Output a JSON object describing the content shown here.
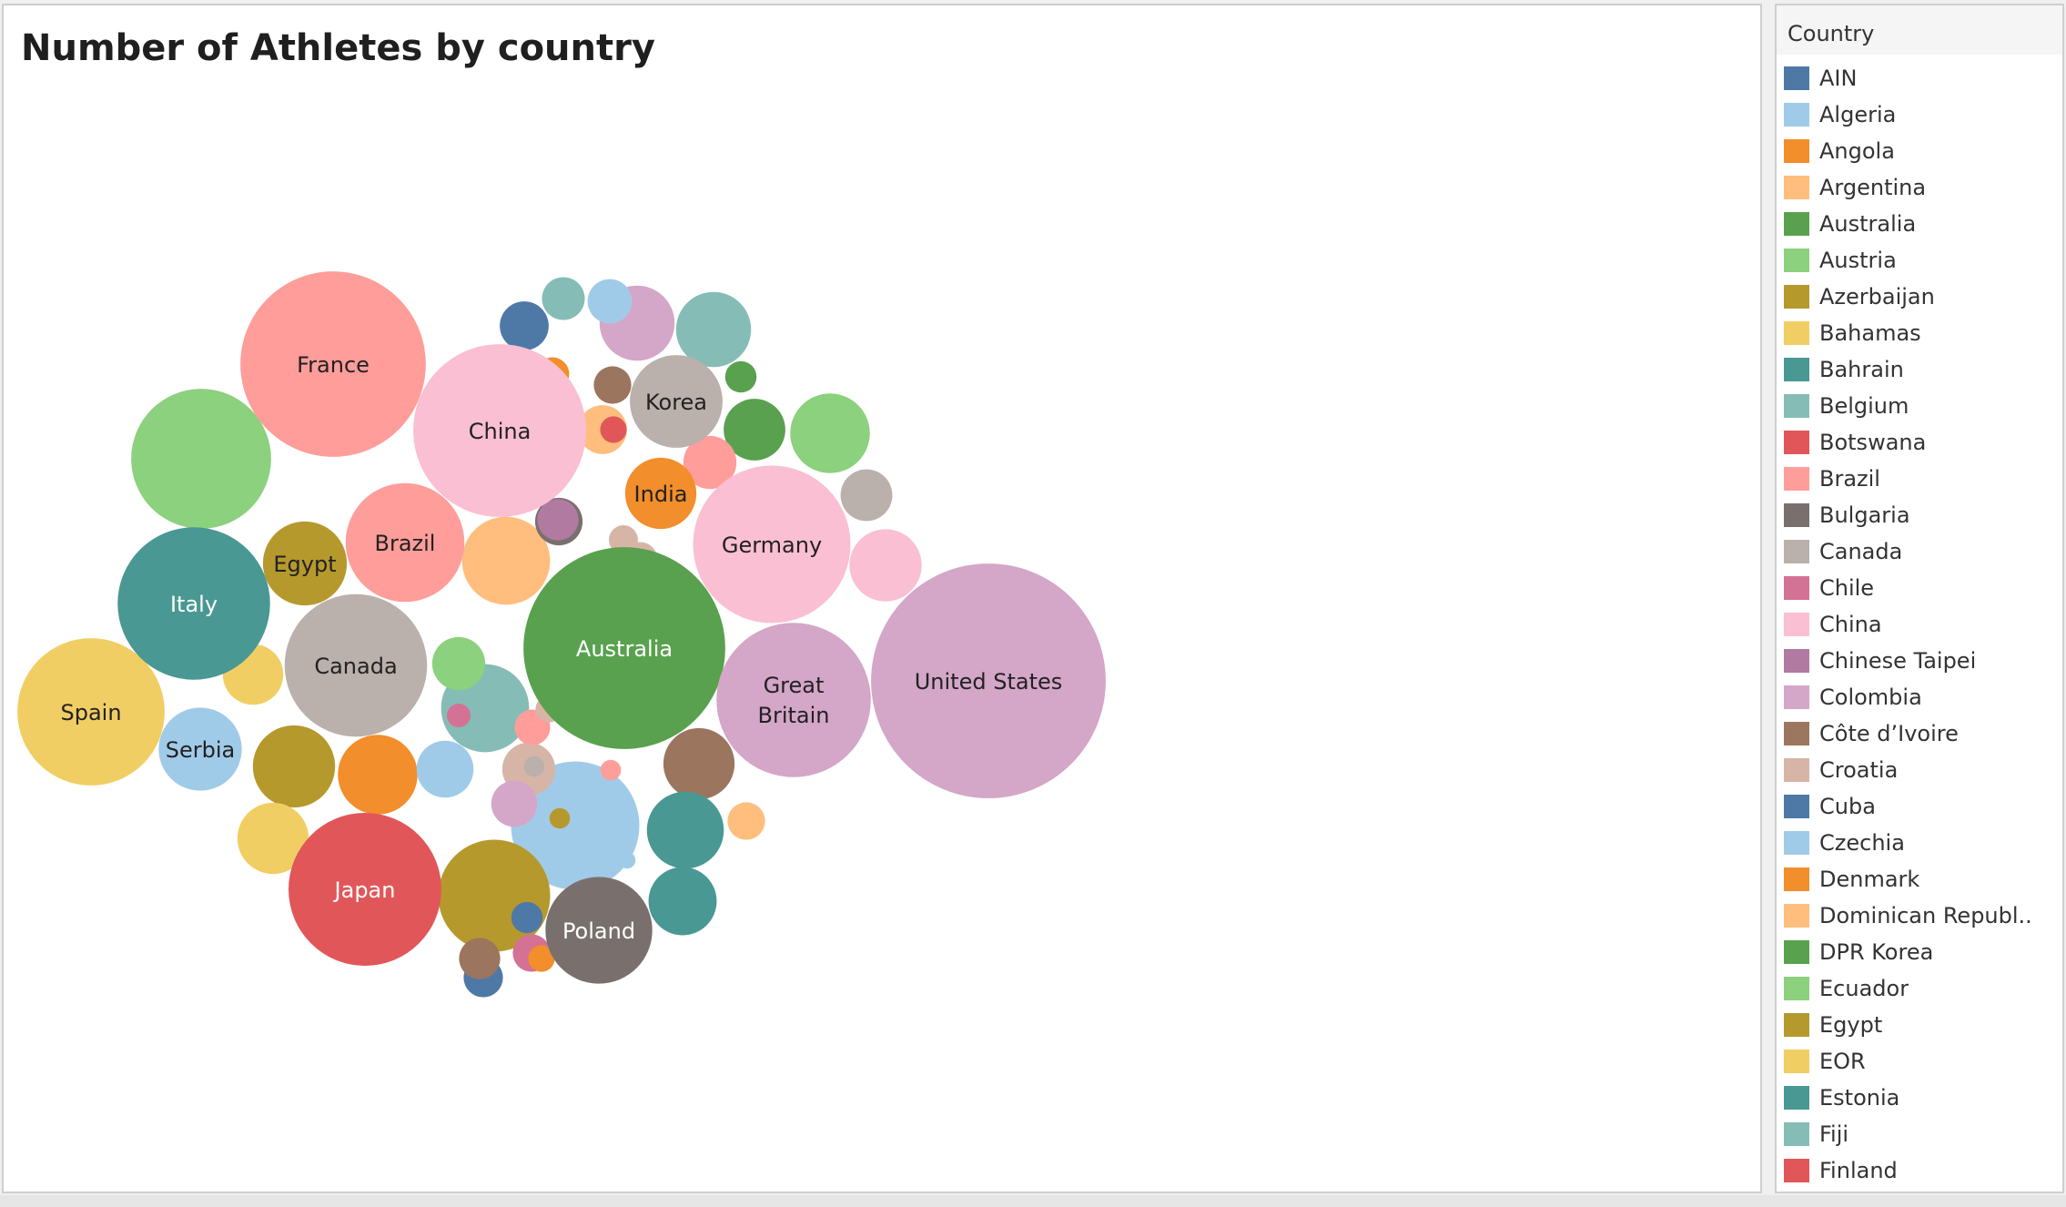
{
  "chart_data": {
    "type": "bubble",
    "title": "Number of Athletes by country",
    "labeled_bubbles": [
      {
        "label": "United States",
        "color": "#D4A6C8",
        "size": 3.91
      },
      {
        "label": "Australia",
        "color": "#59A14F",
        "size": 2.89
      },
      {
        "label": "France",
        "color": "#FF9D9A",
        "size": 2.44
      },
      {
        "label": "China",
        "color": "#FABFD2",
        "size": 2.12
      },
      {
        "label": "Germany",
        "color": "#FABFD2",
        "size": 1.76
      },
      {
        "label": "Great Britain",
        "color": "#D4A6C8",
        "size": 1.69
      },
      {
        "label": "Canada",
        "color": "#BAB0AC",
        "size": 1.44
      },
      {
        "label": "Spain",
        "color": "#F1CE63",
        "size": 1.54
      },
      {
        "label": "Japan",
        "color": "#E15759",
        "size": 1.66
      },
      {
        "label": "Italy",
        "color": "#499894",
        "size": 1.65
      },
      {
        "label": "Brazil",
        "color": "#FF9D9A",
        "size": 1.0
      },
      {
        "label": "Poland",
        "color": "#79706E",
        "size": 0.81
      },
      {
        "label": "Korea",
        "color": "#BAB0AC",
        "size": 0.61
      },
      {
        "label": "Serbia",
        "color": "#A0CBE8",
        "size": 0.49
      },
      {
        "label": "Egypt",
        "color": "#B6992D",
        "size": 0.5
      },
      {
        "label": "India",
        "color": "#F28E2B",
        "size": 0.36
      }
    ],
    "unlabeled_bubbles": [
      {
        "color": "#8CD17D",
        "size": 1.39
      },
      {
        "color": "#A0CBE8",
        "size": 1.17
      },
      {
        "color": "#B6992D",
        "size": 0.89
      },
      {
        "color": "#86BCB6",
        "size": 0.55
      },
      {
        "color": "#FFBE7D",
        "size": 0.55
      },
      {
        "color": "#D4A6C8",
        "size": 0.4
      },
      {
        "color": "#86BCB6",
        "size": 0.4
      },
      {
        "color": "#8CD17D",
        "size": 0.45
      },
      {
        "color": "#F28E2B",
        "size": 0.45
      },
      {
        "color": "#B6992D",
        "size": 0.48
      },
      {
        "color": "#F1CE63",
        "size": 0.36
      },
      {
        "color": "#FABFD2",
        "size": 0.37
      },
      {
        "color": "#9C755F",
        "size": 0.36
      },
      {
        "color": "#499894",
        "size": 0.42
      },
      {
        "color": "#499894",
        "size": 0.33
      },
      {
        "color": "#59A14F",
        "size": 0.27
      },
      {
        "color": "#F1CE63",
        "size": 0.26
      },
      {
        "color": "#A0CBE8",
        "size": 0.23
      },
      {
        "color": "#8CD17D",
        "size": 0.2
      },
      {
        "color": "#BAB0AC",
        "size": 0.19
      },
      {
        "color": "#D7B5A6",
        "size": 0.2
      },
      {
        "color": "#FF9D9A",
        "size": 0.2
      },
      {
        "color": "#FFBE7D",
        "size": 0.17
      },
      {
        "color": "#A0CBE8",
        "size": 0.14
      },
      {
        "color": "#79706E",
        "size": 0.16
      },
      {
        "color": "#B07AA1",
        "size": 0.12
      },
      {
        "color": "#D4A6C8",
        "size": 0.15
      },
      {
        "color": "#4E79A7",
        "size": 0.17
      },
      {
        "color": "#86BCB6",
        "size": 0.13
      },
      {
        "color": "#86BCB6",
        "size": 0.13
      },
      {
        "color": "#4E79A7",
        "size": 0.11
      },
      {
        "color": "#9C755F",
        "size": 0.12
      },
      {
        "color": "#E15759",
        "size": 0.09
      },
      {
        "color": "#D7B5A6",
        "size": 0.09
      },
      {
        "color": "#9C755F",
        "size": 0.1
      },
      {
        "color": "#FFBE7D",
        "size": 0.1
      },
      {
        "color": "#D37295",
        "size": 0.1
      },
      {
        "color": "#FF9D9A",
        "size": 0.09
      },
      {
        "color": "#F28E2B",
        "size": 0.08
      },
      {
        "color": "#59A14F",
        "size": 0.07
      },
      {
        "color": "#4E79A7",
        "size": 0.07
      },
      {
        "color": "#D7B5A6",
        "size": 0.05
      },
      {
        "color": "#D7B5A6",
        "size": 0.06
      },
      {
        "color": "#4E79A7",
        "size": 0.05
      },
      {
        "color": "#F28E2B",
        "size": 0.05
      },
      {
        "color": "#E15759",
        "size": 0.05
      },
      {
        "color": "#D37295",
        "size": 0.04
      },
      {
        "color": "#B6992D",
        "size": 0.03
      },
      {
        "color": "#BAB0AC",
        "size": 0.03
      },
      {
        "color": "#FF9D9A",
        "size": 0.03
      },
      {
        "color": "#A0CBE8",
        "size": 0.02
      }
    ]
  },
  "legend": {
    "title": "Country",
    "items": [
      {
        "label": "AIN",
        "color": "#4E79A7"
      },
      {
        "label": "Algeria",
        "color": "#A0CBE8"
      },
      {
        "label": "Angola",
        "color": "#F28E2B"
      },
      {
        "label": "Argentina",
        "color": "#FFBE7D"
      },
      {
        "label": "Australia",
        "color": "#59A14F"
      },
      {
        "label": "Austria",
        "color": "#8CD17D"
      },
      {
        "label": "Azerbaijan",
        "color": "#B6992D"
      },
      {
        "label": "Bahamas",
        "color": "#F1CE63"
      },
      {
        "label": "Bahrain",
        "color": "#499894"
      },
      {
        "label": "Belgium",
        "color": "#86BCB6"
      },
      {
        "label": "Botswana",
        "color": "#E15759"
      },
      {
        "label": "Brazil",
        "color": "#FF9D9A"
      },
      {
        "label": "Bulgaria",
        "color": "#79706E"
      },
      {
        "label": "Canada",
        "color": "#BAB0AC"
      },
      {
        "label": "Chile",
        "color": "#D37295"
      },
      {
        "label": "China",
        "color": "#FABFD2"
      },
      {
        "label": "Chinese Taipei",
        "color": "#B07AA1"
      },
      {
        "label": "Colombia",
        "color": "#D4A6C8"
      },
      {
        "label": "Côte d’Ivoire",
        "color": "#9D7660"
      },
      {
        "label": "Croatia",
        "color": "#D7B5A6"
      },
      {
        "label": "Cuba",
        "color": "#4E79A7"
      },
      {
        "label": "Czechia",
        "color": "#A0CBE8"
      },
      {
        "label": "Denmark",
        "color": "#F28E2B"
      },
      {
        "label": "Dominican Republ..",
        "color": "#FFBE7D"
      },
      {
        "label": "DPR Korea",
        "color": "#59A14F"
      },
      {
        "label": "Ecuador",
        "color": "#8CD17D"
      },
      {
        "label": "Egypt",
        "color": "#B6992D"
      },
      {
        "label": "EOR",
        "color": "#F1CE63"
      },
      {
        "label": "Estonia",
        "color": "#499894"
      },
      {
        "label": "Fiji",
        "color": "#86BCB6"
      },
      {
        "label": "Finland",
        "color": "#E15759"
      }
    ]
  }
}
